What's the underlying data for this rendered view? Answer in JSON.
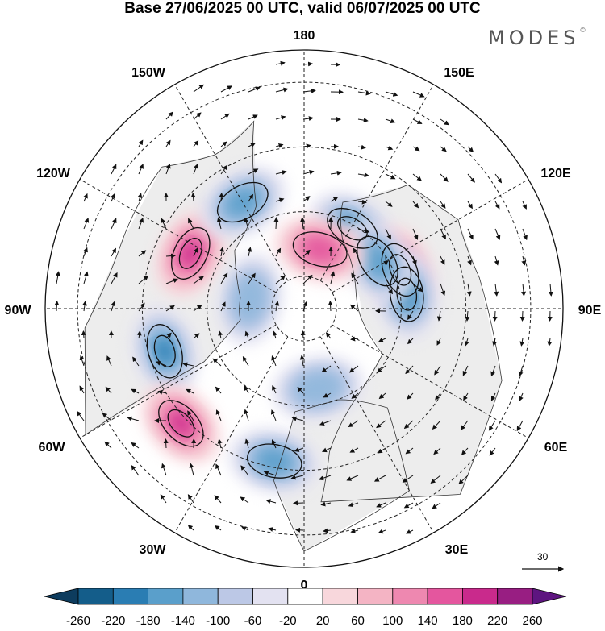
{
  "title": "Base 27/06/2025 00 UTC, valid 06/07/2025 00 UTC",
  "brand": "MODES",
  "brand_mark": "©",
  "longitude_labels": [
    {
      "key": "180",
      "text": "180"
    },
    {
      "key": "150E",
      "text": "150E"
    },
    {
      "key": "120E",
      "text": "120E"
    },
    {
      "key": "90E",
      "text": "90E"
    },
    {
      "key": "60E",
      "text": "60E"
    },
    {
      "key": "30E",
      "text": "30E"
    },
    {
      "key": "0",
      "text": "0"
    },
    {
      "key": "30W",
      "text": "30W"
    },
    {
      "key": "60W",
      "text": "60W"
    },
    {
      "key": "90W",
      "text": "90W"
    },
    {
      "key": "120W",
      "text": "120W"
    },
    {
      "key": "150W",
      "text": "150W"
    }
  ],
  "colorbar": {
    "colors": [
      "#0d3c5e",
      "#145d8a",
      "#2a7db3",
      "#5a9fcb",
      "#8fb7dc",
      "#bcc8e6",
      "#e3e2f1",
      "#ffffff",
      "#f8d7dc",
      "#f4b4c4",
      "#ee88b0",
      "#e4569e",
      "#c92a8c",
      "#981e82",
      "#5e1580"
    ],
    "ticks": [
      "-260",
      "-220",
      "-180",
      "-140",
      "-100",
      "-60",
      "-20",
      "20",
      "60",
      "100",
      "140",
      "180",
      "220",
      "260"
    ]
  },
  "reference_vector": {
    "value": "30"
  },
  "anomaly_centers": [
    {
      "sign": "negative",
      "level": 3,
      "lat": 61,
      "lon": 149
    },
    {
      "sign": "positive",
      "level": 3,
      "lat": 58,
      "lon": 112
    },
    {
      "sign": "negative",
      "level": 3,
      "lat": 58,
      "lon": 98
    },
    {
      "sign": "negative",
      "level": 2,
      "lat": 63,
      "lon": 123
    },
    {
      "sign": "positive",
      "level": 3,
      "lat": 51,
      "lon": -116
    },
    {
      "sign": "negative",
      "level": 2,
      "lat": 52,
      "lon": -150
    },
    {
      "sign": "negative",
      "level": 3,
      "lat": 45,
      "lon": -73
    },
    {
      "sign": "positive",
      "level": 3,
      "lat": 38,
      "lon": -47
    },
    {
      "sign": "negative",
      "level": 2,
      "lat": 42,
      "lon": -11
    },
    {
      "sign": "positive",
      "level": 2,
      "lat": 71,
      "lon": 165
    },
    {
      "sign": "negative",
      "level": 1,
      "lat": 65,
      "lon": 10
    },
    {
      "sign": "negative",
      "level": 1,
      "lat": 73,
      "lon": -100
    }
  ]
}
